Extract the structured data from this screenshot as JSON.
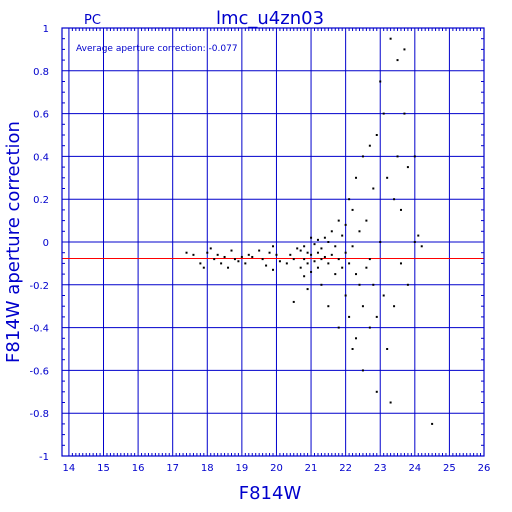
{
  "chart_data": {
    "type": "scatter",
    "label_top_left": "PC",
    "title": "lmc_u4zn03",
    "annotation": "Average aperture correction: -0.077",
    "xlabel": "F814W",
    "ylabel": "F814W aperture correction",
    "xlim": [
      13.8,
      26
    ],
    "ylim": [
      -1,
      1
    ],
    "xticks": [
      "14",
      "15",
      "16",
      "17",
      "18",
      "19",
      "20",
      "21",
      "22",
      "23",
      "24",
      "25",
      "26"
    ],
    "yticks": [
      "1",
      "0.8",
      "0.6",
      "0.4",
      "0.2",
      "0",
      "-0.2",
      "-0.4",
      "-0.6",
      "-0.8",
      "-1"
    ],
    "grid": true,
    "reference_line": {
      "y": -0.077,
      "color": "#ff0000"
    },
    "colors": {
      "frame": "#0000cc",
      "points": "#000000"
    },
    "points": [
      [
        17.4,
        -0.05
      ],
      [
        17.6,
        -0.06
      ],
      [
        17.8,
        -0.1
      ],
      [
        17.9,
        -0.12
      ],
      [
        18.0,
        -0.05
      ],
      [
        18.1,
        -0.03
      ],
      [
        18.2,
        -0.08
      ],
      [
        18.3,
        -0.06
      ],
      [
        18.4,
        -0.1
      ],
      [
        18.5,
        -0.07
      ],
      [
        18.6,
        -0.12
      ],
      [
        18.7,
        -0.04
      ],
      [
        18.8,
        -0.08
      ],
      [
        18.9,
        -0.09
      ],
      [
        19.0,
        -0.07
      ],
      [
        19.1,
        -0.1
      ],
      [
        19.2,
        -0.06
      ],
      [
        19.3,
        -0.07
      ],
      [
        19.5,
        -0.04
      ],
      [
        19.6,
        -0.08
      ],
      [
        19.7,
        -0.11
      ],
      [
        19.8,
        -0.05
      ],
      [
        19.9,
        -0.02
      ],
      [
        19.9,
        -0.13
      ],
      [
        20.0,
        -0.06
      ],
      [
        20.1,
        -0.09
      ],
      [
        20.3,
        -0.1
      ],
      [
        20.4,
        -0.06
      ],
      [
        20.5,
        -0.08
      ],
      [
        20.5,
        -0.28
      ],
      [
        20.6,
        -0.03
      ],
      [
        20.7,
        -0.04
      ],
      [
        20.7,
        -0.12
      ],
      [
        20.8,
        -0.02
      ],
      [
        20.8,
        -0.08
      ],
      [
        20.8,
        -0.16
      ],
      [
        20.9,
        -0.05
      ],
      [
        20.9,
        -0.1
      ],
      [
        20.9,
        -0.22
      ],
      [
        21.0,
        0.02
      ],
      [
        21.0,
        -0.06
      ],
      [
        21.0,
        -0.14
      ],
      [
        21.1,
        -0.01
      ],
      [
        21.1,
        -0.09
      ],
      [
        21.2,
        0.01
      ],
      [
        21.2,
        -0.05
      ],
      [
        21.2,
        -0.12
      ],
      [
        21.3,
        -0.03
      ],
      [
        21.3,
        -0.08
      ],
      [
        21.3,
        -0.2
      ],
      [
        21.4,
        0.02
      ],
      [
        21.4,
        -0.07
      ],
      [
        21.5,
        0.0
      ],
      [
        21.5,
        -0.1
      ],
      [
        21.5,
        -0.3
      ],
      [
        21.6,
        0.05
      ],
      [
        21.6,
        -0.06
      ],
      [
        21.7,
        -0.02
      ],
      [
        21.7,
        -0.15
      ],
      [
        21.8,
        0.1
      ],
      [
        21.8,
        -0.08
      ],
      [
        21.8,
        -0.4
      ],
      [
        21.9,
        0.03
      ],
      [
        21.9,
        -0.12
      ],
      [
        22.0,
        0.08
      ],
      [
        22.0,
        -0.05
      ],
      [
        22.0,
        -0.25
      ],
      [
        22.1,
        0.2
      ],
      [
        22.1,
        -0.1
      ],
      [
        22.1,
        -0.35
      ],
      [
        22.2,
        0.15
      ],
      [
        22.2,
        -0.02
      ],
      [
        22.2,
        -0.5
      ],
      [
        22.3,
        0.3
      ],
      [
        22.3,
        -0.15
      ],
      [
        22.3,
        -0.45
      ],
      [
        22.4,
        0.05
      ],
      [
        22.4,
        -0.2
      ],
      [
        22.5,
        0.4
      ],
      [
        22.5,
        -0.3
      ],
      [
        22.5,
        -0.6
      ],
      [
        22.6,
        0.1
      ],
      [
        22.6,
        -0.12
      ],
      [
        22.7,
        0.45
      ],
      [
        22.7,
        -0.08
      ],
      [
        22.7,
        -0.4
      ],
      [
        22.8,
        0.25
      ],
      [
        22.8,
        -0.2
      ],
      [
        22.9,
        0.5
      ],
      [
        22.9,
        -0.35
      ],
      [
        22.9,
        -0.7
      ],
      [
        23.0,
        0.75
      ],
      [
        23.0,
        0.0
      ],
      [
        23.1,
        0.6
      ],
      [
        23.1,
        -0.25
      ],
      [
        23.2,
        0.3
      ],
      [
        23.2,
        -0.5
      ],
      [
        23.3,
        0.95
      ],
      [
        23.3,
        -0.75
      ],
      [
        23.4,
        0.2
      ],
      [
        23.4,
        -0.3
      ],
      [
        23.5,
        0.85
      ],
      [
        23.5,
        0.4
      ],
      [
        23.6,
        0.15
      ],
      [
        23.6,
        -0.1
      ],
      [
        23.7,
        0.9
      ],
      [
        23.7,
        0.6
      ],
      [
        23.8,
        0.35
      ],
      [
        23.8,
        -0.2
      ],
      [
        24.0,
        0.4
      ],
      [
        24.0,
        0.0
      ],
      [
        24.1,
        0.03
      ],
      [
        24.2,
        -0.02
      ],
      [
        24.5,
        -0.85
      ]
    ]
  }
}
